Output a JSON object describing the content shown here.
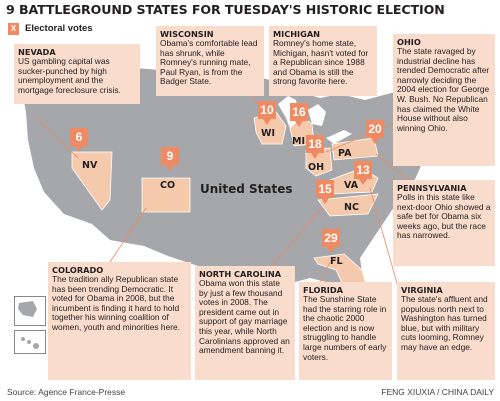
{
  "title": "9 BATTLEGROUND STATES FOR TUESDAY'S HISTORIC ELECTION",
  "legend": {
    "symbol": "X",
    "label": "Electoral votes"
  },
  "country_label": "United States",
  "states": [
    {
      "abbr": "NV",
      "votes": "6",
      "name": "NEVADA",
      "text": "US gambling capital was sucker-punched by high unemployment and the mortgage foreclosure crisis."
    },
    {
      "abbr": "CO",
      "votes": "9",
      "name": "COLORADO",
      "text": "The tradition ally Republican state has been trending Democratic. It voted for Obama in 2008, but the incumbent is finding it hard to hold together his winning coalition of women, youth and minorities here."
    },
    {
      "abbr": "WI",
      "votes": "10",
      "name": "WISCONSIN",
      "text": "Obama's comfortable lead has shrunk, while Romney's running mate, Paul Ryan, is from the Badger State."
    },
    {
      "abbr": "MI",
      "votes": "16",
      "name": "MICHIGAN",
      "text": "Romney's home state, Michigan, hasn't voted for a Republican since 1988 and Obama is still the strong favorite here."
    },
    {
      "abbr": "OH",
      "votes": "18",
      "name": "OHIO",
      "text": "The state ravaged by industrial decline has trended Democratic after narrowly deciding the 2004 election for George W. Bush. No Republican has claimed the White House without also winning Ohio."
    },
    {
      "abbr": "PA",
      "votes": "20",
      "name": "PENNSYLVANIA",
      "text": "Polls in this state like next-door Ohio showed a safe bet for Obama six weeks ago, but the race has narrowed."
    },
    {
      "abbr": "VA",
      "votes": "13",
      "name": "VIRGINIA",
      "text": "The state's affluent and populous north next to Washington has turned blue, but with military cuts looming, Romney may have an edge."
    },
    {
      "abbr": "NC",
      "votes": "15",
      "name": "NORTH CAROLINA",
      "text": "Obama won this state by just a few thousand votes in 2008. The president came out in support of gay marriage this year, while North Carolinians approved an amendment banning it."
    },
    {
      "abbr": "FL",
      "votes": "29",
      "name": "FLORIDA",
      "text": "The Sunshine State had the starring role in the chaotic 2000 election and is now struggling to handle large numbers of early voters."
    }
  ],
  "footer": {
    "source": "Source: Agence France-Presse",
    "credit": "FENG XIUXIA / CHINA DAILY"
  },
  "colors": {
    "map_fill": "#a5a7aa",
    "state_fill": "#f4c9ac",
    "callout_bg": "#f9dccc",
    "marker": "#ef8a62"
  }
}
